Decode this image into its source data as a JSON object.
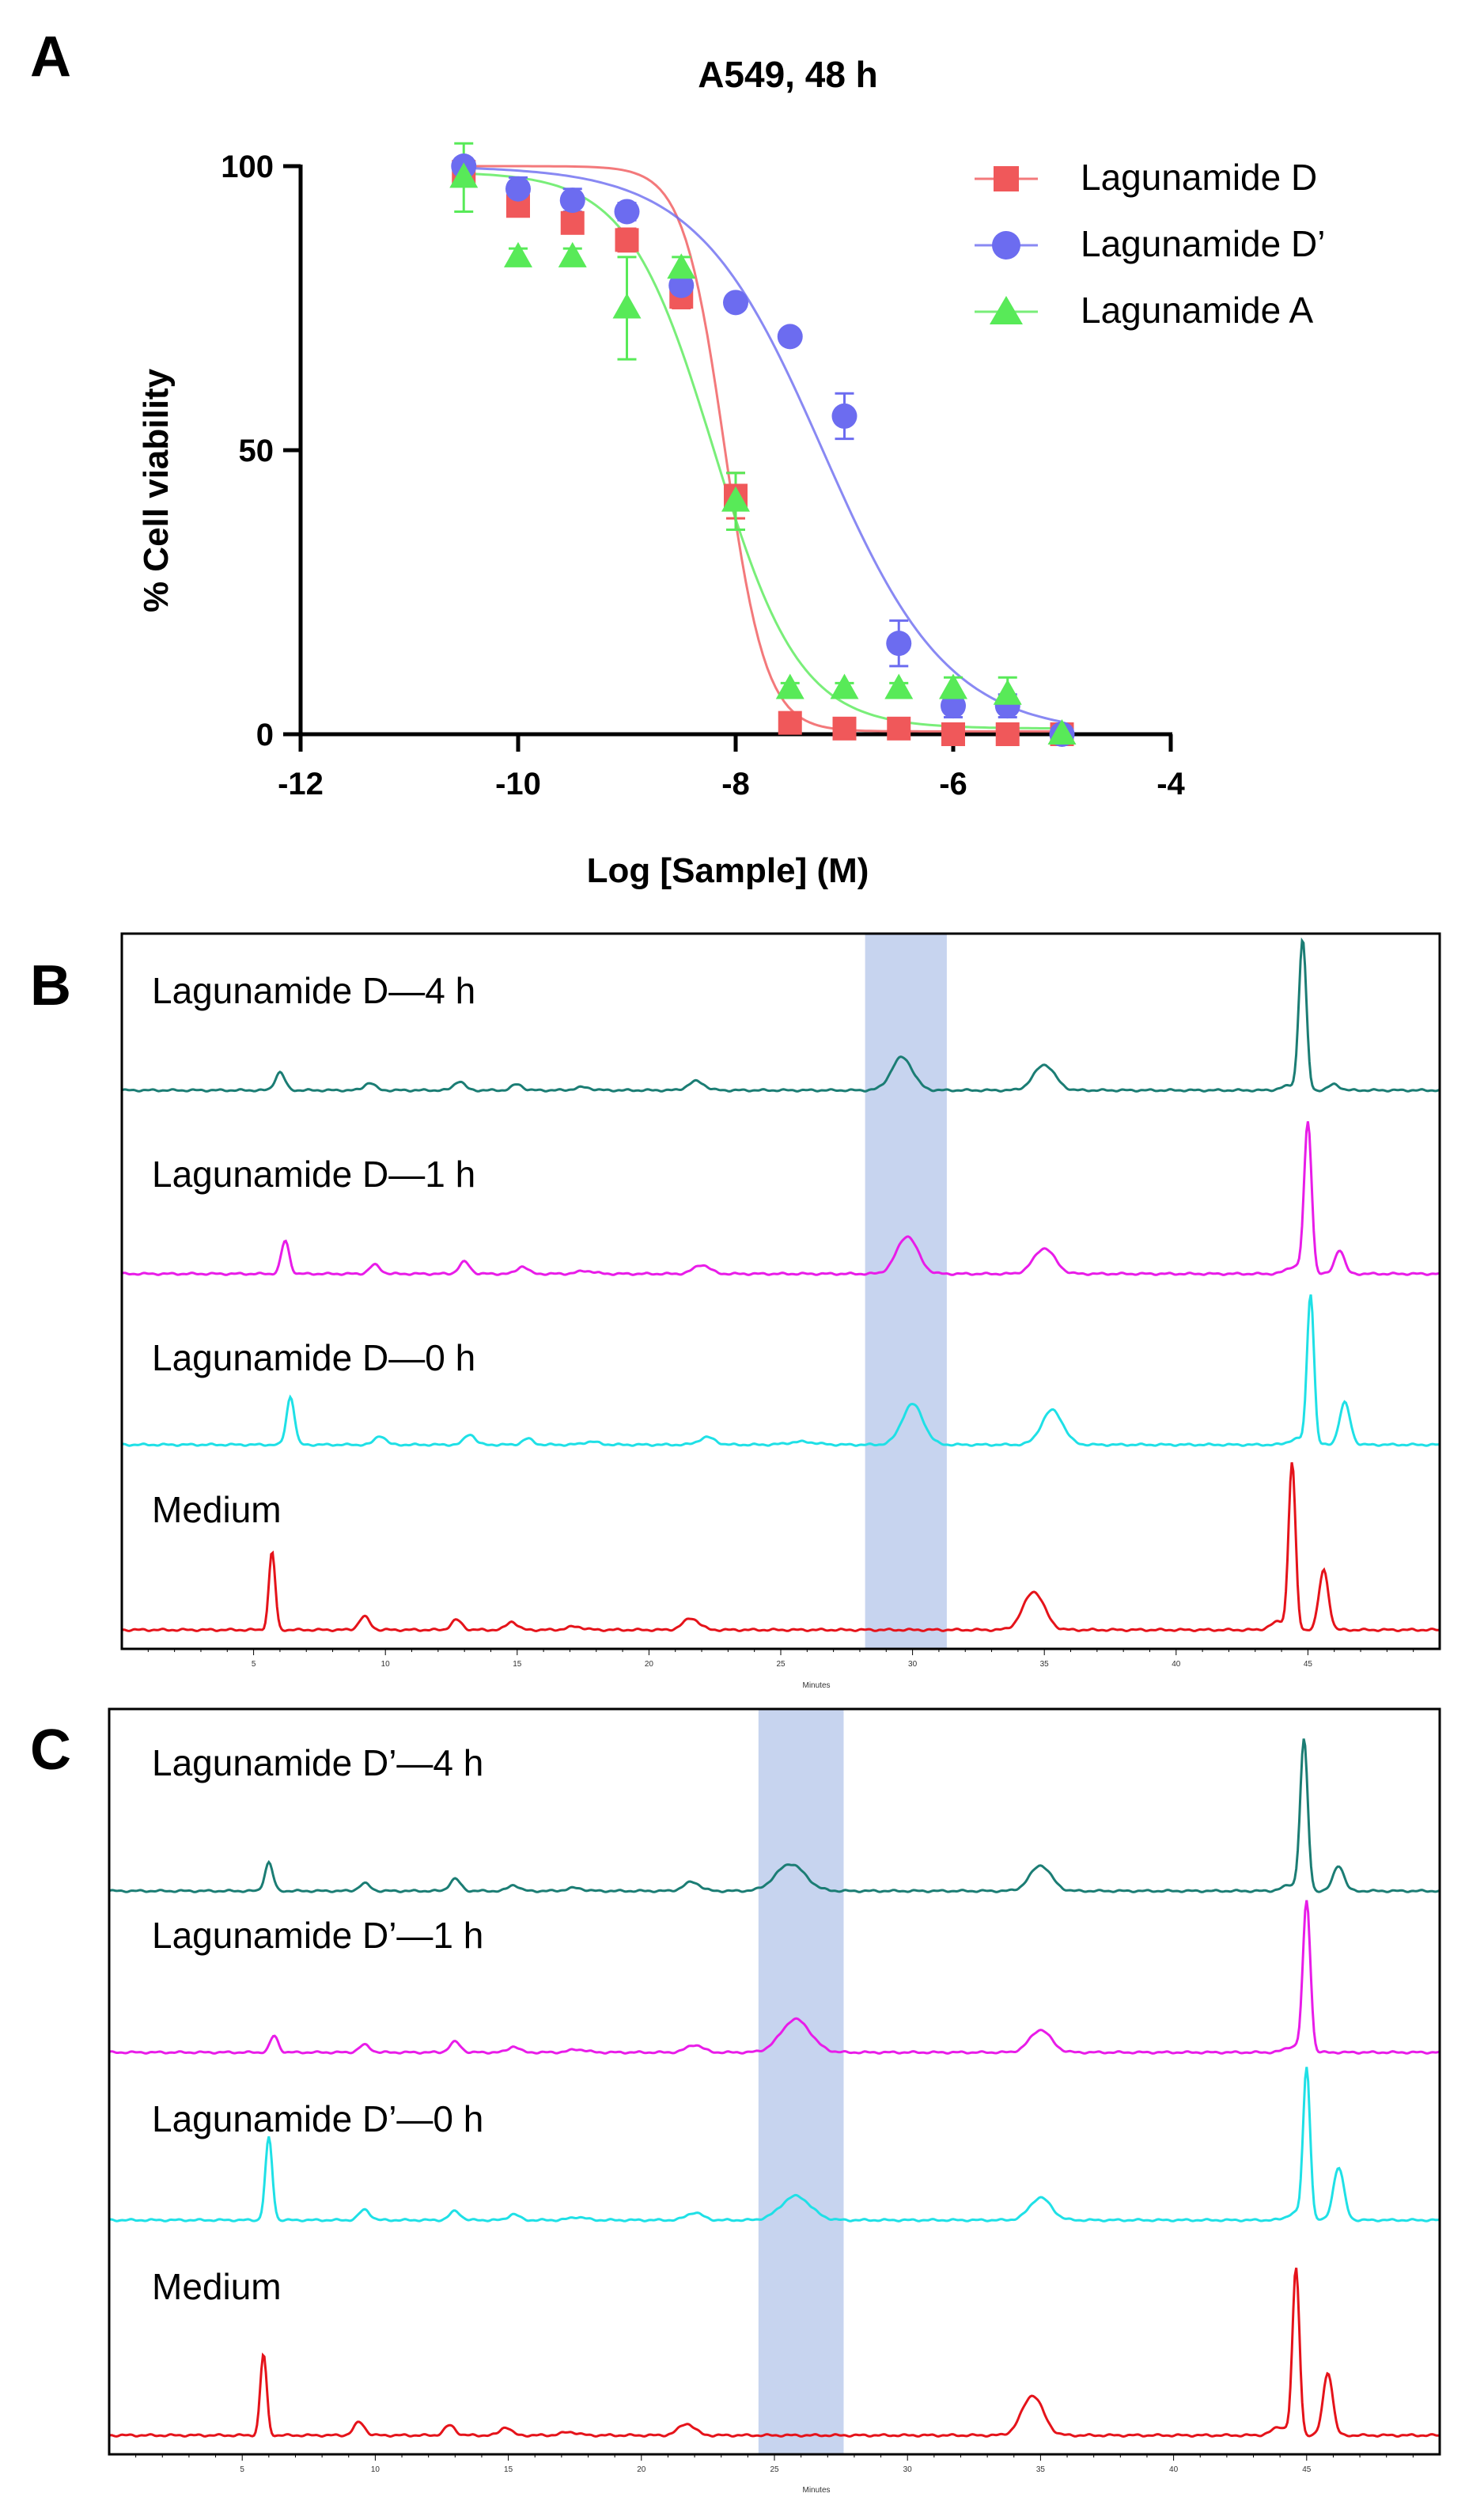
{
  "figure": {
    "panel_a_letter": "A",
    "panel_b_letter": "B",
    "panel_c_letter": "C"
  },
  "colors": {
    "red": "#f0585a",
    "blue": "#6c6cf0",
    "green": "#58ea58",
    "teal": "#1b7d74",
    "magenta": "#e81ce8",
    "cyan": "#1fe0e6",
    "trace_red": "#e5131a",
    "highlight": "#c7d4ef"
  },
  "chart_data": [
    {
      "id": "A",
      "type": "scatter",
      "title": "A549, 48 h",
      "xlabel": "Log [Sample] (M)",
      "ylabel": "% Cell viability",
      "xlim": [
        -12,
        -4
      ],
      "ylim": [
        0,
        100
      ],
      "xticks": [
        -12,
        -10,
        -8,
        -6,
        -4
      ],
      "xtick_labels": [
        "-12",
        "-10",
        "-8",
        "-6",
        "-4"
      ],
      "yticks": [
        0,
        50,
        100
      ],
      "ytick_labels": [
        "0",
        "50",
        "100"
      ],
      "legend_position": "top-right",
      "series": [
        {
          "name": "Lagunamide D",
          "marker": "square",
          "color": "#f0585a",
          "x": [
            -10.5,
            -10,
            -9.5,
            -9,
            -8.5,
            -8,
            -7.5,
            -7,
            -6.5,
            -6,
            -5.5,
            -5
          ],
          "y": [
            99,
            93,
            90,
            87,
            77,
            42,
            2,
            1,
            1,
            0,
            0,
            0
          ],
          "err": [
            2,
            1.5,
            1.5,
            2,
            2,
            4,
            1,
            0.5,
            0.5,
            0.5,
            0.5,
            0.5
          ],
          "fit": {
            "top": 100,
            "bottom": 0.5,
            "logIC50": -8.1,
            "hill": 2.3
          }
        },
        {
          "name": "Lagunamide D’",
          "marker": "circle",
          "color": "#6c6cf0",
          "x": [
            -10.5,
            -10,
            -9.5,
            -9,
            -8.5,
            -8,
            -7.5,
            -7,
            -6.5,
            -6,
            -5.5,
            -5
          ],
          "y": [
            100,
            96,
            94,
            92,
            79,
            76,
            70,
            56,
            16,
            5,
            5,
            0
          ],
          "err": [
            1,
            2,
            2,
            1.5,
            1.5,
            1,
            1,
            4,
            4,
            2,
            2,
            1
          ],
          "fit": {
            "top": 100,
            "bottom": 0,
            "logIC50": -7.2,
            "hill": 0.75
          }
        },
        {
          "name": "Lagunamide A",
          "marker": "triangle",
          "color": "#58ea58",
          "x": [
            -10.5,
            -10,
            -9.5,
            -9,
            -8.5,
            -8,
            -7.5,
            -7,
            -6.5,
            -6,
            -5.5,
            -5
          ],
          "y": [
            98,
            84,
            84,
            75,
            82,
            41,
            8,
            8,
            8,
            8,
            7,
            0
          ],
          "err": [
            6,
            1.5,
            1.5,
            9,
            2,
            5,
            1,
            1,
            1,
            2,
            3,
            1
          ],
          "fit": {
            "top": 99,
            "bottom": 1,
            "logIC50": -8.2,
            "hill": 1.1
          }
        }
      ]
    },
    {
      "id": "B",
      "type": "line",
      "xlabel": "Minutes",
      "xlim": [
        0,
        50
      ],
      "xticks": [
        5,
        10,
        15,
        20,
        25,
        30,
        35,
        40,
        45
      ],
      "xtick_labels": [
        "5",
        "10",
        "15",
        "20",
        "25",
        "30",
        "35",
        "40",
        "45"
      ],
      "highlight_range_min": [
        28.2,
        31.3
      ],
      "series": [
        {
          "name": "Lagunamide D—4 h",
          "color": "#1b7d74",
          "peaks": [
            [
              6.0,
              0.12,
              0.18
            ],
            [
              9.4,
              0.05,
              0.2
            ],
            [
              12.8,
              0.06,
              0.2
            ],
            [
              15.0,
              0.04,
              0.2
            ],
            [
              17.5,
              0.02,
              0.3
            ],
            [
              21.8,
              0.06,
              0.3
            ],
            [
              29.6,
              0.22,
              0.4
            ],
            [
              35.0,
              0.17,
              0.4
            ],
            [
              44.3,
              0.03,
              0.3
            ],
            [
              44.8,
              1.0,
              0.14
            ],
            [
              46.0,
              0.04,
              0.2
            ]
          ]
        },
        {
          "name": "Lagunamide D—1 h",
          "color": "#e81ce8",
          "peaks": [
            [
              6.2,
              0.22,
              0.15
            ],
            [
              9.6,
              0.06,
              0.2
            ],
            [
              13.0,
              0.08,
              0.2
            ],
            [
              15.2,
              0.05,
              0.2
            ],
            [
              17.6,
              0.02,
              0.3
            ],
            [
              22.0,
              0.06,
              0.3
            ],
            [
              29.8,
              0.25,
              0.4
            ],
            [
              35.0,
              0.17,
              0.4
            ],
            [
              44.5,
              0.05,
              0.3
            ],
            [
              45.0,
              1.0,
              0.14
            ],
            [
              46.2,
              0.16,
              0.18
            ]
          ]
        },
        {
          "name": "Lagunamide D—0 h",
          "color": "#1fe0e6",
          "peaks": [
            [
              6.4,
              0.32,
              0.15
            ],
            [
              9.8,
              0.06,
              0.2
            ],
            [
              13.2,
              0.07,
              0.2
            ],
            [
              15.4,
              0.04,
              0.2
            ],
            [
              17.8,
              0.02,
              0.3
            ],
            [
              22.2,
              0.05,
              0.3
            ],
            [
              25.8,
              0.02,
              0.5
            ],
            [
              30.0,
              0.27,
              0.4
            ],
            [
              35.3,
              0.23,
              0.4
            ],
            [
              44.6,
              0.04,
              0.3
            ],
            [
              45.1,
              1.0,
              0.13
            ],
            [
              46.4,
              0.28,
              0.2
            ]
          ]
        },
        {
          "name": "Medium",
          "color": "#e5131a",
          "peaks": [
            [
              5.7,
              0.47,
              0.12
            ],
            [
              9.2,
              0.08,
              0.2
            ],
            [
              12.7,
              0.06,
              0.2
            ],
            [
              14.8,
              0.05,
              0.2
            ],
            [
              17.2,
              0.02,
              0.3
            ],
            [
              21.6,
              0.07,
              0.3
            ],
            [
              34.6,
              0.23,
              0.4
            ],
            [
              43.9,
              0.05,
              0.3
            ],
            [
              44.4,
              1.0,
              0.13
            ],
            [
              45.6,
              0.36,
              0.18
            ]
          ]
        }
      ]
    },
    {
      "id": "C",
      "type": "line",
      "xlabel": "Minutes",
      "xlim": [
        0,
        50
      ],
      "xticks": [
        5,
        10,
        15,
        20,
        25,
        30,
        35,
        40,
        45
      ],
      "xtick_labels": [
        "5",
        "10",
        "15",
        "20",
        "25",
        "30",
        "35",
        "40",
        "45"
      ],
      "highlight_range_min": [
        24.4,
        27.6
      ],
      "series": [
        {
          "name": "Lagunamide D’—4 h",
          "color": "#1b7d74",
          "peaks": [
            [
              6.0,
              0.19,
              0.15
            ],
            [
              9.6,
              0.05,
              0.2
            ],
            [
              13.0,
              0.08,
              0.2
            ],
            [
              15.2,
              0.04,
              0.2
            ],
            [
              17.5,
              0.02,
              0.3
            ],
            [
              21.9,
              0.06,
              0.3
            ],
            [
              25.6,
              0.18,
              0.55
            ],
            [
              35.0,
              0.17,
              0.4
            ],
            [
              44.4,
              0.04,
              0.3
            ],
            [
              44.9,
              1.0,
              0.14
            ],
            [
              46.2,
              0.17,
              0.2
            ]
          ]
        },
        {
          "name": "Lagunamide D’—1 h",
          "color": "#e81ce8",
          "peaks": [
            [
              6.2,
              0.11,
              0.15
            ],
            [
              9.6,
              0.05,
              0.2
            ],
            [
              13.0,
              0.07,
              0.2
            ],
            [
              15.2,
              0.04,
              0.2
            ],
            [
              17.6,
              0.02,
              0.3
            ],
            [
              22.0,
              0.05,
              0.3
            ],
            [
              25.8,
              0.22,
              0.55
            ],
            [
              35.0,
              0.15,
              0.4
            ],
            [
              44.5,
              0.04,
              0.3
            ],
            [
              45.0,
              1.0,
              0.14
            ]
          ]
        },
        {
          "name": "Lagunamide D’—0 h",
          "color": "#1fe0e6",
          "peaks": [
            [
              6.0,
              0.55,
              0.13
            ],
            [
              9.6,
              0.07,
              0.2
            ],
            [
              13.0,
              0.06,
              0.2
            ],
            [
              15.2,
              0.04,
              0.2
            ],
            [
              17.6,
              0.02,
              0.3
            ],
            [
              22.0,
              0.05,
              0.3
            ],
            [
              25.8,
              0.16,
              0.55
            ],
            [
              35.0,
              0.15,
              0.4
            ],
            [
              44.6,
              0.05,
              0.3
            ],
            [
              45.0,
              1.0,
              0.13
            ],
            [
              46.2,
              0.35,
              0.2
            ]
          ]
        },
        {
          "name": "Medium",
          "color": "#e5131a",
          "peaks": [
            [
              5.8,
              0.49,
              0.12
            ],
            [
              9.4,
              0.08,
              0.2
            ],
            [
              12.8,
              0.06,
              0.2
            ],
            [
              14.9,
              0.05,
              0.2
            ],
            [
              17.3,
              0.02,
              0.3
            ],
            [
              21.7,
              0.07,
              0.3
            ],
            [
              34.7,
              0.24,
              0.4
            ],
            [
              44.0,
              0.05,
              0.3
            ],
            [
              44.6,
              1.0,
              0.13
            ],
            [
              45.8,
              0.38,
              0.18
            ]
          ]
        }
      ]
    }
  ]
}
